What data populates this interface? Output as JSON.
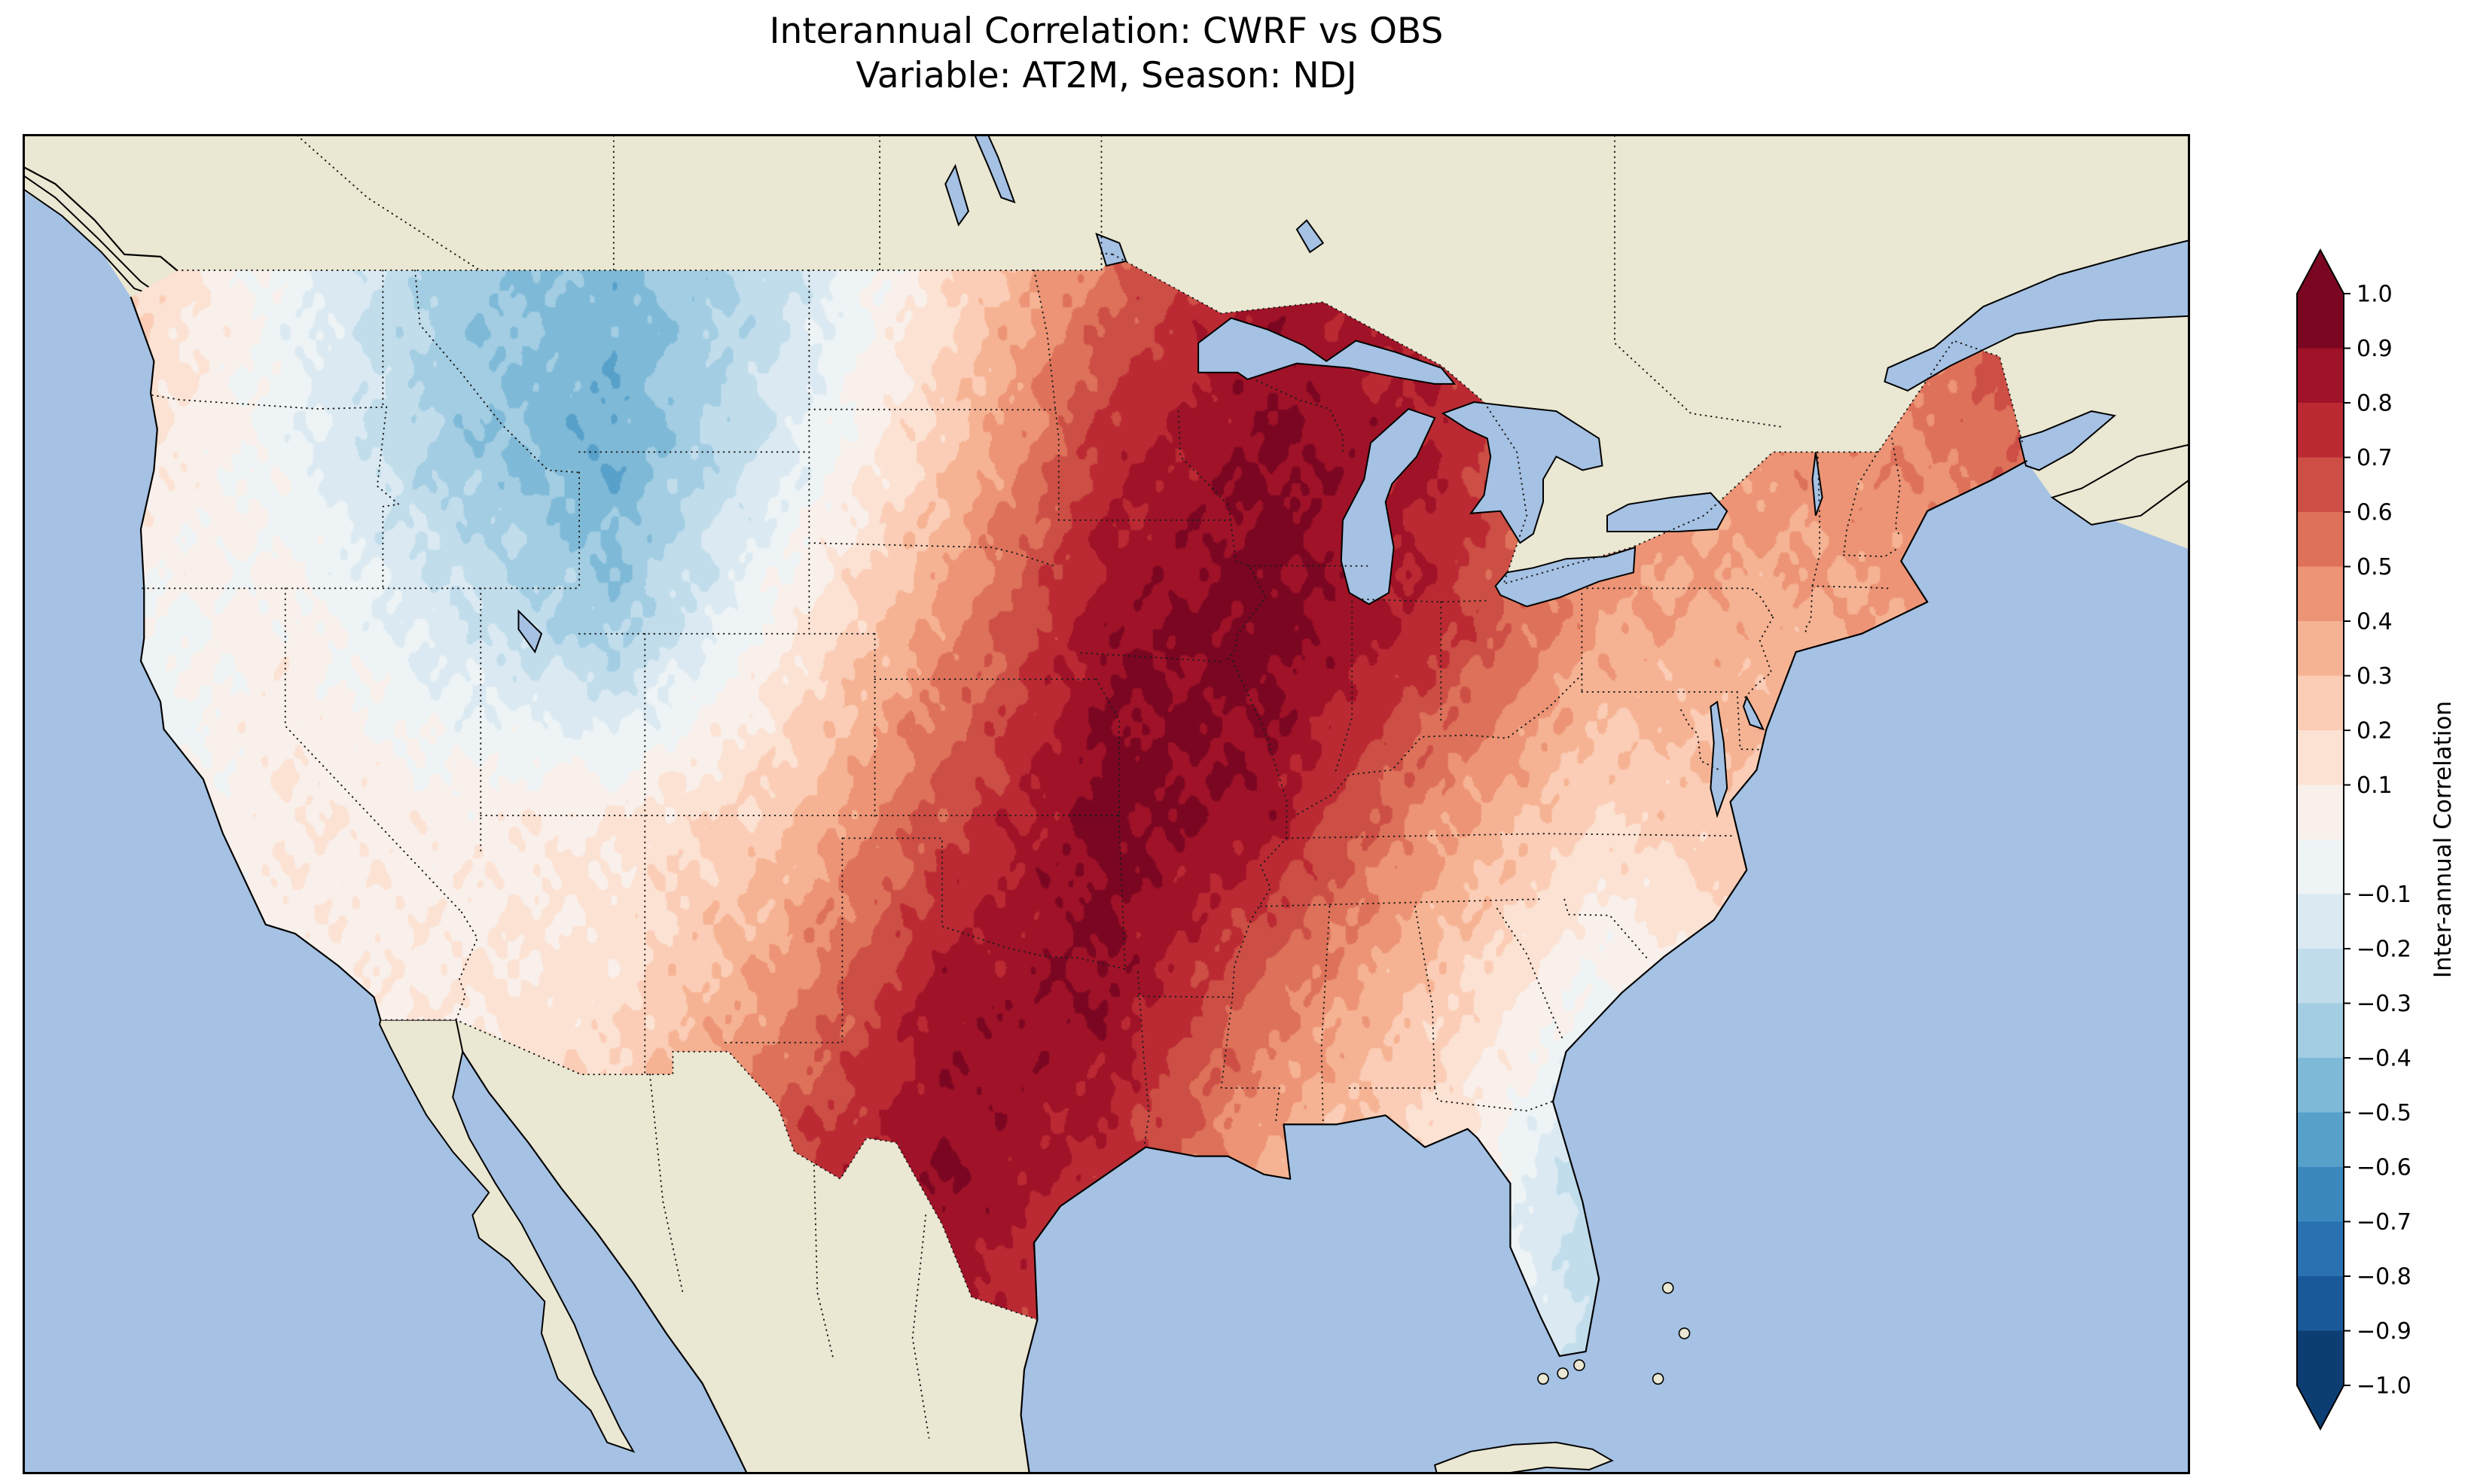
{
  "figure": {
    "title_line1": "Interannual Correlation: CWRF vs OBS",
    "title_line2": "Variable: AT2M, Season: NDJ"
  },
  "chart_data": {
    "type": "heatmap",
    "title": "Interannual Correlation: CWRF vs OBS",
    "subtitle": "Variable: AT2M, Season: NDJ",
    "variable": "AT2M",
    "season": "NDJ",
    "comparison": "CWRF vs OBS",
    "region": "Continental United States",
    "colormap": "RdBu_r",
    "levels": {
      "min": -1.0,
      "max": 1.0,
      "step": 0.1
    },
    "colorbar": {
      "label": "Inter-annual Correlation",
      "tick_values": [
        1.0,
        0.9,
        0.8,
        0.7,
        0.6,
        0.5,
        0.4,
        0.3,
        0.2,
        0.1,
        -0.1,
        -0.2,
        -0.3,
        -0.4,
        -0.5,
        -0.6,
        -0.7,
        -0.8,
        -0.9,
        -1.0
      ],
      "tick_labels": [
        "1.0",
        "0.9",
        "0.8",
        "0.7",
        "0.6",
        "0.5",
        "0.4",
        "0.3",
        "0.2",
        "0.1",
        "−0.1",
        "−0.2",
        "−0.3",
        "−0.4",
        "−0.5",
        "−0.6",
        "−0.7",
        "−0.8",
        "−0.9",
        "−1.0"
      ]
    },
    "map_extent": {
      "lon_min": -128,
      "lon_max": -62,
      "lat_min": 22.5,
      "lat_max": 52
    },
    "grid": {
      "lon": [
        -125,
        -120,
        -115,
        -110,
        -105,
        -100,
        -95,
        -90,
        -85,
        -80,
        -75,
        -70,
        -67
      ],
      "lat": [
        49,
        45,
        41,
        37,
        33,
        29,
        25
      ],
      "correlation": [
        [
          0.25,
          -0.05,
          -0.35,
          -0.45,
          -0.25,
          0.15,
          0.55,
          0.85,
          0.75,
          0.45,
          0.45,
          0.55,
          0.75
        ],
        [
          0.15,
          -0.05,
          -0.35,
          -0.5,
          -0.15,
          0.25,
          0.75,
          0.92,
          0.8,
          0.5,
          0.45,
          0.5,
          0.6
        ],
        [
          -0.05,
          0.05,
          -0.15,
          -0.35,
          0.05,
          0.45,
          0.88,
          0.95,
          0.75,
          0.4,
          0.35,
          0.4,
          0.45
        ],
        [
          -0.1,
          0.1,
          0.05,
          0.1,
          0.25,
          0.65,
          0.95,
          0.85,
          0.45,
          0.2,
          0.3,
          0.3,
          0.3
        ],
        [
          0.0,
          0.05,
          0.1,
          0.15,
          0.45,
          0.85,
          0.9,
          0.55,
          0.25,
          -0.05,
          0.15,
          0.2,
          0.2
        ],
        [
          0.0,
          0.0,
          0.1,
          0.3,
          0.7,
          0.9,
          0.75,
          0.35,
          0.15,
          -0.3,
          0.0,
          0.0,
          0.0
        ],
        [
          0.0,
          0.0,
          0.1,
          0.4,
          0.75,
          0.8,
          0.6,
          0.3,
          0.1,
          -0.25,
          0.0,
          0.0,
          0.0
        ]
      ]
    },
    "colors": {
      "ocean": "#a5c1e3",
      "land": "#eae7d2",
      "frame": "#000000",
      "borders": "#1b1b1b"
    }
  }
}
